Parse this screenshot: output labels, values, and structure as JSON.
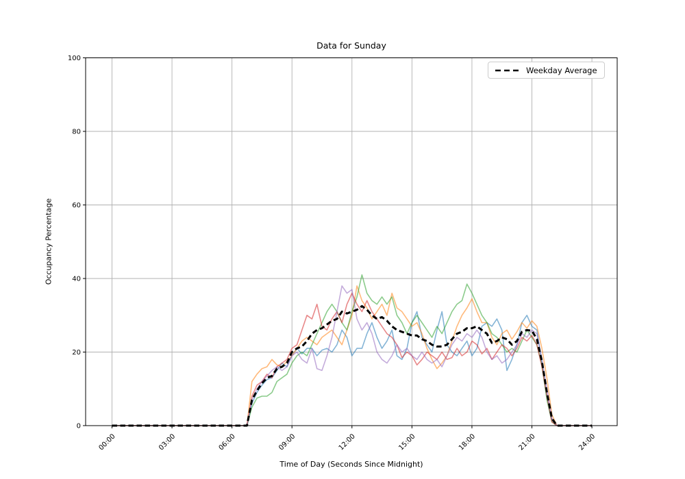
{
  "colors": {
    "grid": "#b0b0b0",
    "spine": "#000000",
    "tick_label": "#000000",
    "background": "#ffffff"
  },
  "chart_data": {
    "type": "line",
    "title": "Data for Sunday",
    "xlabel": "Time of Day (Seconds Since Midnight)",
    "ylabel": "Occupancy Percentage",
    "xlim_hours": [
      0,
      24
    ],
    "ylim": [
      0,
      100
    ],
    "grid": true,
    "x_ticks_hours": [
      0,
      3,
      6,
      9,
      12,
      15,
      18,
      21,
      24
    ],
    "x_tick_labels": [
      "00:00",
      "03:00",
      "06:00",
      "09:00",
      "12:00",
      "15:00",
      "18:00",
      "21:00",
      "24:00"
    ],
    "y_ticks": [
      0,
      20,
      40,
      60,
      80,
      100
    ],
    "y_tick_labels": [
      "0",
      "20",
      "40",
      "60",
      "80",
      "100"
    ],
    "x_start_hour": 0,
    "x_step_hours": 0.25,
    "legend": {
      "position": "upper right",
      "entries": [
        {
          "label": "Weekday Average",
          "style": "dashed",
          "color": "#000000"
        }
      ]
    },
    "series": [
      {
        "id": "day-1",
        "color": "#1f77b4",
        "opacity": 0.55,
        "width": 1.6,
        "dash": null,
        "values": [
          0,
          0,
          0,
          0,
          0,
          0,
          0,
          0,
          0,
          0,
          0,
          0,
          0,
          0,
          0,
          0,
          0,
          0,
          0,
          0,
          0,
          0,
          0,
          0,
          0,
          0,
          0,
          0,
          6,
          9,
          11,
          12.5,
          13,
          15,
          17,
          16,
          19,
          21,
          19.5,
          21,
          21,
          19,
          20.5,
          21,
          20,
          22,
          26,
          24,
          19,
          21,
          21,
          25,
          28,
          24,
          21,
          23,
          26,
          19,
          18,
          21,
          28,
          31,
          24,
          22,
          20,
          26,
          31,
          22,
          20,
          19,
          21,
          23,
          19,
          21,
          27,
          28,
          27,
          29,
          26,
          15,
          18,
          22,
          28,
          30,
          27,
          26,
          17,
          8,
          1.5,
          0,
          0,
          0,
          0,
          0,
          0,
          0,
          0
        ]
      },
      {
        "id": "day-2",
        "color": "#ff7f0e",
        "opacity": 0.55,
        "width": 1.6,
        "dash": null,
        "values": [
          0,
          0,
          0,
          0,
          0,
          0,
          0,
          0,
          0,
          0,
          0,
          0,
          0,
          0,
          0,
          0,
          0,
          0,
          0,
          0,
          0,
          0,
          0,
          0,
          0,
          0,
          0,
          0,
          12,
          14,
          15.5,
          16,
          18,
          16.5,
          16,
          17.5,
          19,
          21,
          23,
          24,
          23,
          22,
          24,
          25,
          26,
          24,
          22,
          26,
          30,
          38,
          34,
          32,
          29,
          31,
          33,
          30,
          36,
          32,
          31,
          29,
          27,
          28,
          25,
          21,
          18,
          15.5,
          17,
          19,
          23,
          27,
          30,
          32,
          34.5,
          31,
          28,
          28,
          24,
          22,
          25,
          26,
          23.5,
          25.5,
          28,
          26.5,
          28.5,
          27,
          21,
          13,
          3,
          0,
          0,
          0,
          0,
          0,
          0,
          0,
          0
        ]
      },
      {
        "id": "day-3",
        "color": "#2ca02c",
        "opacity": 0.55,
        "width": 1.6,
        "dash": null,
        "values": [
          0,
          0,
          0,
          0,
          0,
          0,
          0,
          0,
          0,
          0,
          0,
          0,
          0,
          0,
          0,
          0,
          0,
          0,
          0,
          0,
          0,
          0,
          0,
          0,
          0,
          0,
          0,
          0,
          5,
          7.5,
          8,
          8,
          9,
          12,
          13,
          14,
          17,
          19,
          20,
          19,
          22,
          25,
          28,
          31,
          33,
          31,
          28,
          26,
          31,
          35,
          41,
          36,
          34,
          33,
          35,
          33,
          35,
          30,
          28,
          25,
          28,
          30,
          28,
          26,
          24,
          27,
          25,
          28,
          31,
          33,
          34,
          38.5,
          36,
          33,
          30,
          28,
          25,
          24,
          22,
          20,
          21,
          20,
          23,
          26,
          24,
          22,
          16.5,
          7,
          1,
          0,
          0,
          0,
          0,
          0,
          0,
          0,
          0
        ]
      },
      {
        "id": "day-4",
        "color": "#d62728",
        "opacity": 0.55,
        "width": 1.6,
        "dash": null,
        "values": [
          0,
          0,
          0,
          0,
          0,
          0,
          0,
          0,
          0,
          0,
          0,
          0,
          0,
          0,
          0,
          0,
          0,
          0,
          0,
          0,
          0,
          0,
          0,
          0,
          0,
          0,
          0,
          0,
          8,
          11,
          12,
          14,
          13,
          16,
          17,
          18,
          21,
          22,
          26,
          30,
          29,
          33,
          27,
          26,
          29,
          31,
          28,
          33,
          36,
          33,
          31,
          34,
          31,
          29,
          27,
          25,
          24,
          22,
          18.5,
          20,
          19,
          16.5,
          18,
          20,
          19,
          18,
          20,
          18,
          18.5,
          21,
          19,
          20,
          23,
          22,
          19.5,
          21,
          18,
          20,
          22,
          21,
          19,
          21,
          24,
          23,
          24.5,
          22,
          16,
          8,
          1,
          0,
          0,
          0,
          0,
          0,
          0,
          0,
          0
        ]
      },
      {
        "id": "day-5",
        "color": "#9467bd",
        "opacity": 0.55,
        "width": 1.6,
        "dash": null,
        "values": [
          0,
          0,
          0,
          0,
          0,
          0,
          0,
          0,
          0,
          0,
          0,
          0,
          0,
          0,
          0,
          0,
          0,
          0,
          0,
          0,
          0,
          0,
          0,
          0,
          0,
          0,
          0,
          0,
          7,
          10,
          12,
          13.5,
          15,
          16,
          15,
          16,
          19,
          20,
          18,
          17,
          21,
          15.5,
          15,
          19,
          24,
          31,
          38,
          36,
          37,
          29,
          26,
          28,
          25,
          20,
          18,
          17,
          19,
          22,
          20,
          21,
          19,
          18,
          20,
          18,
          17,
          18,
          16,
          19,
          22,
          24,
          23,
          25,
          24,
          26,
          24,
          20,
          18,
          19,
          17,
          18,
          20,
          22,
          25,
          24,
          26,
          25,
          18,
          10,
          2,
          0,
          0,
          0,
          0,
          0,
          0,
          0,
          0
        ]
      },
      {
        "id": "weekday-average",
        "name": "Weekday Average",
        "color": "#000000",
        "opacity": 1,
        "width": 3,
        "dash": "7.5 4.5",
        "values": [
          0,
          0,
          0,
          0,
          0,
          0,
          0,
          0,
          0,
          0,
          0,
          0,
          0,
          0,
          0,
          0,
          0,
          0,
          0,
          0,
          0,
          0,
          0,
          0,
          0,
          0,
          0,
          0,
          7,
          9.5,
          11.5,
          13,
          13.5,
          15.5,
          16,
          17,
          20,
          21,
          21.5,
          23,
          25,
          26,
          26.5,
          27.5,
          28.5,
          29,
          31,
          30.5,
          31,
          31.5,
          32.5,
          31.5,
          30,
          29,
          29.5,
          28.5,
          27,
          26,
          25.5,
          25,
          24.5,
          24.5,
          23.5,
          23,
          22,
          21.5,
          21.5,
          22,
          23.5,
          25,
          25.5,
          26.5,
          26.5,
          27,
          26,
          25,
          22.5,
          23,
          24,
          23.5,
          22,
          23,
          25.5,
          26,
          25.8,
          23.5,
          17.5,
          9,
          2,
          0,
          0,
          0,
          0,
          0,
          0,
          0,
          0
        ]
      }
    ]
  }
}
